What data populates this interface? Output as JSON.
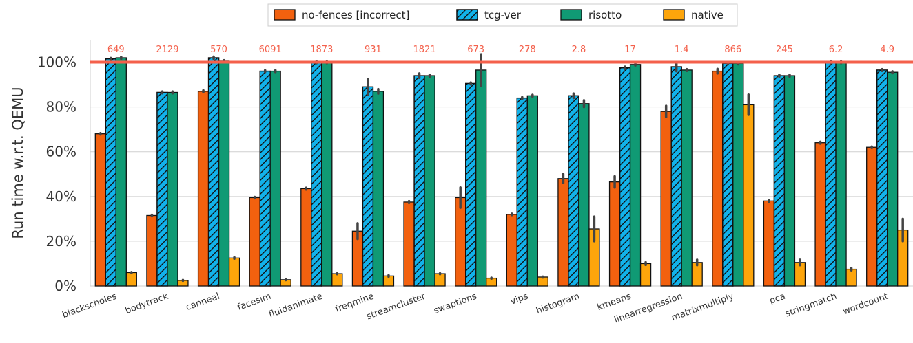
{
  "chart_data": {
    "type": "bar",
    "ylabel": "Run time w.r.t. QEMU",
    "ylim": [
      0,
      110
    ],
    "yticks": [
      0,
      20,
      40,
      60,
      80,
      100
    ],
    "ytick_labels": [
      "0%",
      "20%",
      "40%",
      "60%",
      "80%",
      "100%"
    ],
    "grid": true,
    "legend_position": "top-center",
    "reference_line": {
      "value": 100,
      "color": "#f4604b"
    },
    "categories": [
      "blackscholes",
      "bodytrack",
      "canneal",
      "facesim",
      "fluidanimate",
      "freqmine",
      "streamcluster",
      "swaptions",
      "vips",
      "histogram",
      "kmeans",
      "linearregression",
      "matrixmultiply",
      "pca",
      "stringmatch",
      "wordcount"
    ],
    "top_labels": [
      "649",
      "2129",
      "570",
      "6091",
      "1873",
      "931",
      "1821",
      "673",
      "278",
      "2.8",
      "17",
      "1.4",
      "866",
      "245",
      "6.2",
      "4.9"
    ],
    "series": [
      {
        "name": "no-fences [incorrect]",
        "color": "#f2610f",
        "hatch": false,
        "values": [
          68,
          31.5,
          87,
          39.5,
          43.5,
          24.5,
          37.5,
          39.5,
          32,
          48,
          46.5,
          78,
          96,
          38,
          64,
          62
        ],
        "errors": [
          0.3,
          0.3,
          0.4,
          0.3,
          0.4,
          3.5,
          0.4,
          4.5,
          0.3,
          2,
          2.5,
          2.5,
          1,
          0.4,
          0.4,
          0.3
        ]
      },
      {
        "name": "tcg-ver",
        "color": "#12b2ea",
        "hatch": true,
        "values": [
          101.5,
          86.5,
          102,
          96,
          100,
          89,
          94,
          90.5,
          84,
          85,
          97.5,
          98,
          99.5,
          94,
          100,
          96.5
        ],
        "errors": [
          0.4,
          0.4,
          0.5,
          0.4,
          0.4,
          3.5,
          1,
          0.4,
          0.4,
          1,
          0.5,
          2,
          0.4,
          0.4,
          0.4,
          0.4
        ]
      },
      {
        "name": "risotto",
        "color": "#109a74",
        "hatch": false,
        "values": [
          102,
          86.5,
          100.5,
          96,
          100,
          87,
          94,
          96.5,
          85,
          81.5,
          99,
          96.5,
          99.5,
          94,
          100,
          95.5
        ],
        "errors": [
          0.4,
          0.4,
          0.4,
          0.4,
          0.4,
          1,
          0.4,
          7,
          0.4,
          1.5,
          0.4,
          0.4,
          0.4,
          0.4,
          0.4,
          0.4
        ]
      },
      {
        "name": "native",
        "color": "#fda50b",
        "hatch": false,
        "values": [
          6,
          2.5,
          12.5,
          2.8,
          5.5,
          4.5,
          5.5,
          3.5,
          4,
          25.5,
          10,
          10.5,
          81,
          10.5,
          7.5,
          25
        ],
        "errors": [
          0.2,
          0.2,
          0.3,
          0.2,
          0.2,
          0.3,
          0.2,
          0.2,
          0.2,
          5.5,
          0.6,
          1.2,
          4.5,
          1.2,
          0.5,
          5
        ]
      }
    ]
  }
}
